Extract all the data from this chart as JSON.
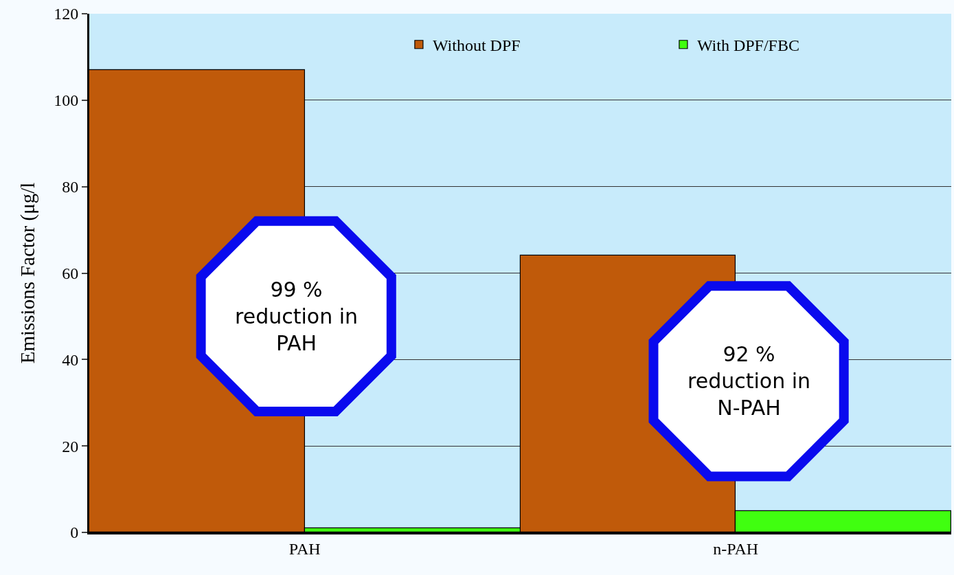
{
  "chart_data": {
    "type": "bar",
    "ylabel": "Emissions Factor (μg/l",
    "categories": [
      "PAH",
      "n-PAH"
    ],
    "series": [
      {
        "name": "Without DPF",
        "color": "#c05a0a",
        "values": [
          107,
          64
        ]
      },
      {
        "name": "With DPF/FBC",
        "color": "#40ff10",
        "values": [
          1,
          5
        ]
      }
    ],
    "ylim": [
      0,
      120
    ],
    "yticks": [
      0,
      20,
      40,
      60,
      80,
      100,
      120
    ],
    "grid": "y",
    "legend": "top right",
    "annotations": [
      "99 %\nreduction in\nPAH",
      "92 %\nreduction in\nN-PAH"
    ]
  }
}
